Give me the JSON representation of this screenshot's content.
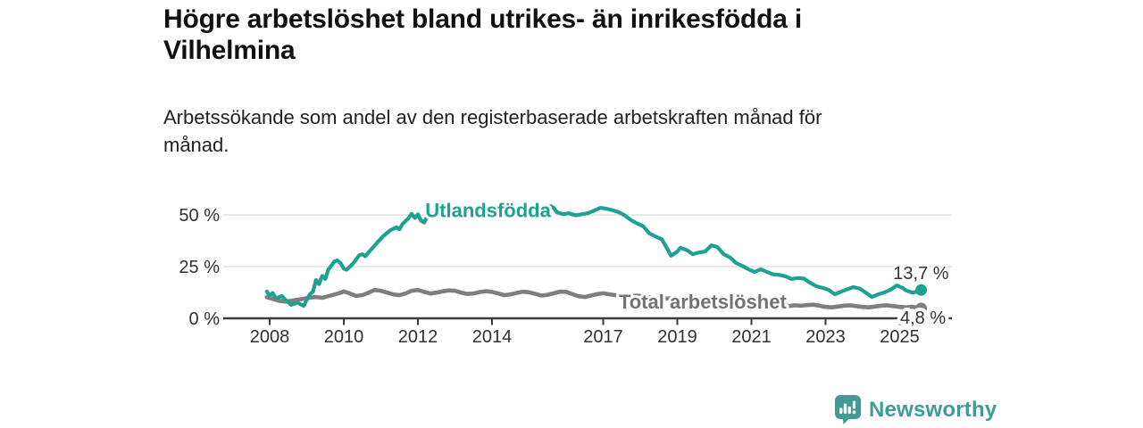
{
  "title": "Högre arbetslöshet bland utrikes- än inrikesfödda i Vilhelmina",
  "subtitle": "Arbetssökande som andel av den registerbaserade arbetskraften månad för månad.",
  "branding": {
    "name": "Newsworthy",
    "icon": "bar-chart-speech-bubble-icon",
    "color": "#3f9c94"
  },
  "colors": {
    "accent_teal": "#1fa191",
    "line_gray": "#7e7e7e",
    "axis": "#3a3a3a",
    "gridline": "#d9d9d9",
    "tick_text": "#303030",
    "value_text": "#333333"
  },
  "chart_data": {
    "type": "line",
    "title": "Högre arbetslöshet bland utrikes- än inrikesfödda i Vilhelmina",
    "subtitle": "Arbetssökande som andel av den registerbaserade arbetskraften månad för månad.",
    "x_axis": {
      "tick_values": [
        2008,
        2010,
        2012,
        2014,
        2017,
        2019,
        2021,
        2023,
        2025
      ],
      "tick_labels": [
        "2008",
        "2010",
        "2012",
        "2014",
        "2017",
        "2019",
        "2021",
        "2023",
        "2025"
      ],
      "domain": [
        2007.9,
        2025.6
      ]
    },
    "y_axis": {
      "tick_values": [
        0,
        25,
        50
      ],
      "tick_labels": [
        "0 %",
        "25 %",
        "50 %"
      ],
      "unit": "%",
      "domain": [
        0,
        56
      ]
    },
    "grid": "horizontal",
    "legend": "inline-labels",
    "series": [
      {
        "id": "total-arbetsloshet",
        "name": "Total arbetslöshet",
        "color": "#7e7e7e",
        "label_color": "#6f7277",
        "stroke_width": 4.6,
        "label_anchor": {
          "year": 2017.42,
          "value": 4.7
        },
        "end_label": "4,8 %",
        "end_value": 4.8,
        "end_label_pos": "baseline",
        "points": [
          [
            2007.92,
            10.2
          ],
          [
            2008.08,
            9.4
          ],
          [
            2008.25,
            8.5
          ],
          [
            2008.42,
            8.1
          ],
          [
            2008.58,
            8.5
          ],
          [
            2008.75,
            9.0
          ],
          [
            2008.92,
            9.5
          ],
          [
            2009.08,
            10.0
          ],
          [
            2009.25,
            10.3
          ],
          [
            2009.42,
            9.9
          ],
          [
            2009.58,
            10.7
          ],
          [
            2009.75,
            11.5
          ],
          [
            2009.92,
            12.4
          ],
          [
            2010.0,
            13.0
          ],
          [
            2010.17,
            12.0
          ],
          [
            2010.33,
            10.8
          ],
          [
            2010.5,
            11.2
          ],
          [
            2010.67,
            12.4
          ],
          [
            2010.83,
            13.7
          ],
          [
            2011.0,
            13.3
          ],
          [
            2011.17,
            12.4
          ],
          [
            2011.33,
            11.6
          ],
          [
            2011.5,
            11.2
          ],
          [
            2011.67,
            12.0
          ],
          [
            2011.83,
            13.3
          ],
          [
            2012.0,
            13.7
          ],
          [
            2012.17,
            12.8
          ],
          [
            2012.33,
            12.0
          ],
          [
            2012.5,
            12.4
          ],
          [
            2012.67,
            13.0
          ],
          [
            2012.83,
            13.5
          ],
          [
            2013.0,
            13.3
          ],
          [
            2013.17,
            12.4
          ],
          [
            2013.33,
            11.8
          ],
          [
            2013.5,
            12.0
          ],
          [
            2013.67,
            12.7
          ],
          [
            2013.83,
            13.1
          ],
          [
            2014.0,
            12.8
          ],
          [
            2014.17,
            12.0
          ],
          [
            2014.33,
            11.2
          ],
          [
            2014.5,
            11.6
          ],
          [
            2014.67,
            12.3
          ],
          [
            2014.83,
            12.9
          ],
          [
            2015.0,
            12.6
          ],
          [
            2015.17,
            11.8
          ],
          [
            2015.33,
            11.0
          ],
          [
            2015.5,
            11.4
          ],
          [
            2015.67,
            12.1
          ],
          [
            2015.83,
            12.9
          ],
          [
            2016.0,
            12.8
          ],
          [
            2016.17,
            11.7
          ],
          [
            2016.33,
            10.7
          ],
          [
            2016.5,
            10.3
          ],
          [
            2016.67,
            11.0
          ],
          [
            2016.83,
            11.7
          ],
          [
            2017.0,
            12.1
          ],
          [
            2017.17,
            11.6
          ],
          [
            2017.42,
            11.0
          ],
          [
            2017.67,
            10.6
          ],
          [
            2017.92,
            11.0
          ],
          [
            2018.17,
            10.4
          ],
          [
            2018.42,
            9.9
          ],
          [
            2018.67,
            9.5
          ],
          [
            2018.92,
            9.9
          ],
          [
            2019.17,
            9.3
          ],
          [
            2019.42,
            8.8
          ],
          [
            2019.67,
            8.4
          ],
          [
            2019.92,
            8.9
          ],
          [
            2020.17,
            8.6
          ],
          [
            2020.42,
            8.2
          ],
          [
            2020.67,
            7.8
          ],
          [
            2020.92,
            7.4
          ],
          [
            2021.17,
            7.1
          ],
          [
            2021.42,
            6.7
          ],
          [
            2021.67,
            6.3
          ],
          [
            2021.83,
            7.0
          ],
          [
            2022.0,
            5.9
          ],
          [
            2022.17,
            6.3
          ],
          [
            2022.33,
            6.1
          ],
          [
            2022.5,
            6.4
          ],
          [
            2022.67,
            6.6
          ],
          [
            2022.83,
            6.1
          ],
          [
            2023.0,
            5.5
          ],
          [
            2023.17,
            5.3
          ],
          [
            2023.33,
            5.7
          ],
          [
            2023.5,
            6.1
          ],
          [
            2023.67,
            6.3
          ],
          [
            2023.83,
            5.9
          ],
          [
            2024.0,
            5.5
          ],
          [
            2024.17,
            5.3
          ],
          [
            2024.33,
            5.7
          ],
          [
            2024.5,
            6.1
          ],
          [
            2024.67,
            6.3
          ],
          [
            2024.83,
            5.9
          ],
          [
            2025.0,
            5.5
          ],
          [
            2025.17,
            5.3
          ],
          [
            2025.33,
            5.6
          ],
          [
            2025.58,
            4.8
          ]
        ]
      },
      {
        "id": "utlandsfodda",
        "name": "Utlandsfödda",
        "color": "#1fa191",
        "label_color": "#1fa191",
        "stroke_width": 4.2,
        "label_anchor": {
          "year": 2012.2,
          "value": 49
        },
        "end_label": "13,7 %",
        "end_value": 13.7,
        "end_label_pos": "above",
        "points": [
          [
            2007.92,
            13.0
          ],
          [
            2008.0,
            11.0
          ],
          [
            2008.08,
            12.3
          ],
          [
            2008.17,
            9.6
          ],
          [
            2008.33,
            10.8
          ],
          [
            2008.42,
            9.0
          ],
          [
            2008.58,
            6.5
          ],
          [
            2008.75,
            7.6
          ],
          [
            2008.92,
            6.0
          ],
          [
            2009.0,
            9.0
          ],
          [
            2009.08,
            11.5
          ],
          [
            2009.17,
            13.0
          ],
          [
            2009.25,
            18.5
          ],
          [
            2009.33,
            16.5
          ],
          [
            2009.42,
            20.5
          ],
          [
            2009.5,
            19.0
          ],
          [
            2009.58,
            23.5
          ],
          [
            2009.75,
            27.5
          ],
          [
            2009.83,
            28.0
          ],
          [
            2009.92,
            26.5
          ],
          [
            2010.0,
            24.0
          ],
          [
            2010.08,
            23.5
          ],
          [
            2010.25,
            26.5
          ],
          [
            2010.42,
            30.5
          ],
          [
            2010.5,
            31.0
          ],
          [
            2010.58,
            30.0
          ],
          [
            2010.75,
            33.5
          ],
          [
            2010.92,
            37.0
          ],
          [
            2011.08,
            40.0
          ],
          [
            2011.25,
            42.5
          ],
          [
            2011.42,
            44.0
          ],
          [
            2011.5,
            43.0
          ],
          [
            2011.58,
            45.5
          ],
          [
            2011.75,
            48.5
          ],
          [
            2011.83,
            50.5
          ],
          [
            2011.92,
            48.5
          ],
          [
            2012.0,
            50.3
          ],
          [
            2012.08,
            47.3
          ],
          [
            2012.17,
            46.3
          ],
          [
            2012.25,
            49.3
          ],
          [
            2012.42,
            50.8
          ],
          [
            2012.58,
            49.8
          ],
          [
            2012.75,
            51.3
          ],
          [
            2012.92,
            51.8
          ],
          [
            2013.08,
            50.3
          ],
          [
            2013.25,
            49.3
          ],
          [
            2013.42,
            50.8
          ],
          [
            2013.58,
            51.8
          ],
          [
            2013.75,
            50.8
          ],
          [
            2013.92,
            49.8
          ],
          [
            2014.08,
            51.3
          ],
          [
            2014.25,
            52.3
          ],
          [
            2014.42,
            51.3
          ],
          [
            2014.58,
            50.3
          ],
          [
            2014.75,
            51.8
          ],
          [
            2014.92,
            50.8
          ],
          [
            2015.08,
            49.8
          ],
          [
            2015.25,
            50.8
          ],
          [
            2015.42,
            52.3
          ],
          [
            2015.58,
            54.3
          ],
          [
            2015.67,
            53.3
          ],
          [
            2015.75,
            51.3
          ],
          [
            2015.92,
            50.3
          ],
          [
            2016.08,
            50.8
          ],
          [
            2016.25,
            49.8
          ],
          [
            2016.42,
            50.3
          ],
          [
            2016.58,
            50.8
          ],
          [
            2016.75,
            52.0
          ],
          [
            2016.92,
            53.4
          ],
          [
            2017.08,
            53.0
          ],
          [
            2017.25,
            52.3
          ],
          [
            2017.42,
            51.3
          ],
          [
            2017.58,
            49.8
          ],
          [
            2017.75,
            47.5
          ],
          [
            2017.92,
            45.8
          ],
          [
            2018.08,
            44.5
          ],
          [
            2018.25,
            41.0
          ],
          [
            2018.42,
            39.5
          ],
          [
            2018.58,
            38.2
          ],
          [
            2018.75,
            33.0
          ],
          [
            2018.83,
            30.2
          ],
          [
            2019.0,
            32.3
          ],
          [
            2019.08,
            34.1
          ],
          [
            2019.25,
            33.0
          ],
          [
            2019.42,
            31.0
          ],
          [
            2019.58,
            31.8
          ],
          [
            2019.75,
            32.3
          ],
          [
            2019.92,
            35.3
          ],
          [
            2020.08,
            34.5
          ],
          [
            2020.25,
            31.0
          ],
          [
            2020.42,
            29.5
          ],
          [
            2020.58,
            26.8
          ],
          [
            2020.75,
            25.4
          ],
          [
            2020.92,
            23.7
          ],
          [
            2021.08,
            22.4
          ],
          [
            2021.25,
            23.7
          ],
          [
            2021.42,
            22.4
          ],
          [
            2021.58,
            21.3
          ],
          [
            2021.75,
            21.0
          ],
          [
            2021.92,
            20.3
          ],
          [
            2022.08,
            19.0
          ],
          [
            2022.25,
            19.5
          ],
          [
            2022.42,
            19.2
          ],
          [
            2022.58,
            17.2
          ],
          [
            2022.75,
            15.5
          ],
          [
            2022.92,
            14.7
          ],
          [
            2023.08,
            13.8
          ],
          [
            2023.25,
            11.6
          ],
          [
            2023.42,
            12.9
          ],
          [
            2023.58,
            14.0
          ],
          [
            2023.75,
            15.1
          ],
          [
            2023.92,
            14.4
          ],
          [
            2024.08,
            12.5
          ],
          [
            2024.25,
            10.3
          ],
          [
            2024.42,
            11.6
          ],
          [
            2024.58,
            12.5
          ],
          [
            2024.75,
            13.8
          ],
          [
            2024.92,
            15.9
          ],
          [
            2025.08,
            14.7
          ],
          [
            2025.17,
            13.5
          ],
          [
            2025.33,
            12.5
          ],
          [
            2025.5,
            12.9
          ],
          [
            2025.58,
            13.7
          ]
        ]
      }
    ]
  }
}
